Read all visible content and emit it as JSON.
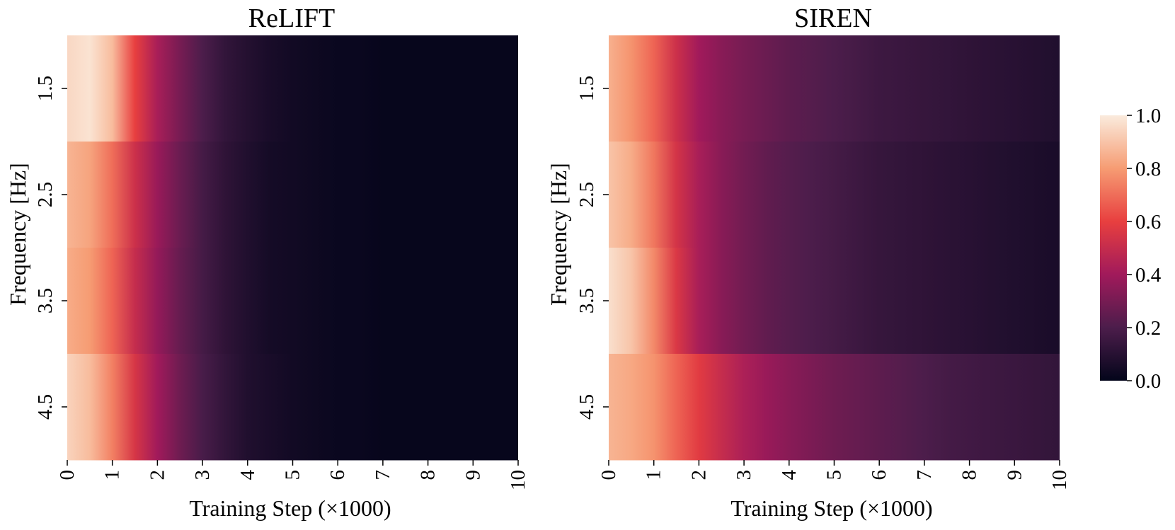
{
  "chart_data": [
    {
      "type": "heatmap",
      "title": "ReLIFT",
      "xlabel": "Training Step (×1000)",
      "ylabel": "Frequency [Hz]",
      "x_ticks": [
        "0",
        "1",
        "2",
        "3",
        "4",
        "5",
        "6",
        "7",
        "8",
        "9",
        "10"
      ],
      "xlim": [
        0,
        10
      ],
      "y_ticks": [
        "1.5",
        "2.5",
        "3.5",
        "4.5"
      ],
      "rows": [
        {
          "label": "1.5",
          "values": [
            0.95,
            0.98,
            0.88,
            0.6,
            0.42,
            0.3,
            0.2,
            0.13,
            0.09,
            0.06,
            0.04,
            0.03,
            0.02,
            0.02,
            0.01,
            0.01,
            0.01,
            0.01,
            0.01,
            0.01,
            0.01
          ]
        },
        {
          "label": "2.5",
          "values": [
            0.86,
            0.82,
            0.7,
            0.52,
            0.38,
            0.27,
            0.18,
            0.12,
            0.08,
            0.05,
            0.04,
            0.03,
            0.02,
            0.02,
            0.01,
            0.01,
            0.01,
            0.01,
            0.01,
            0.01,
            0.01
          ]
        },
        {
          "label": "3.5",
          "values": [
            0.84,
            0.8,
            0.68,
            0.5,
            0.37,
            0.26,
            0.18,
            0.12,
            0.08,
            0.05,
            0.04,
            0.03,
            0.02,
            0.02,
            0.01,
            0.01,
            0.01,
            0.01,
            0.01,
            0.01,
            0.01
          ]
        },
        {
          "label": "4.5",
          "values": [
            0.94,
            0.88,
            0.74,
            0.55,
            0.4,
            0.28,
            0.19,
            0.13,
            0.08,
            0.06,
            0.04,
            0.03,
            0.02,
            0.02,
            0.01,
            0.01,
            0.01,
            0.01,
            0.01,
            0.01,
            0.01
          ]
        }
      ]
    },
    {
      "type": "heatmap",
      "title": "SIREN",
      "xlabel": "Training Step (×1000)",
      "ylabel": "Frequency [Hz]",
      "x_ticks": [
        "0",
        "1",
        "2",
        "3",
        "4",
        "5",
        "6",
        "7",
        "8",
        "9",
        "10"
      ],
      "xlim": [
        0,
        10
      ],
      "y_ticks": [
        "1.5",
        "2.5",
        "3.5",
        "4.5"
      ],
      "rows": [
        {
          "label": "1.5",
          "values": [
            0.85,
            0.78,
            0.68,
            0.52,
            0.4,
            0.34,
            0.3,
            0.27,
            0.24,
            0.22,
            0.2,
            0.18,
            0.16,
            0.15,
            0.14,
            0.13,
            0.12,
            0.11,
            0.1,
            0.09,
            0.08
          ]
        },
        {
          "label": "2.5",
          "values": [
            0.9,
            0.84,
            0.72,
            0.54,
            0.42,
            0.34,
            0.29,
            0.25,
            0.22,
            0.2,
            0.18,
            0.16,
            0.14,
            0.13,
            0.12,
            0.11,
            0.1,
            0.09,
            0.08,
            0.07,
            0.06
          ]
        },
        {
          "label": "3.5",
          "values": [
            0.97,
            0.9,
            0.76,
            0.56,
            0.42,
            0.34,
            0.29,
            0.25,
            0.22,
            0.2,
            0.18,
            0.16,
            0.14,
            0.13,
            0.12,
            0.11,
            0.1,
            0.09,
            0.08,
            0.07,
            0.06
          ]
        },
        {
          "label": "4.5",
          "values": [
            0.86,
            0.83,
            0.78,
            0.68,
            0.58,
            0.5,
            0.43,
            0.38,
            0.34,
            0.31,
            0.28,
            0.26,
            0.24,
            0.22,
            0.2,
            0.18,
            0.17,
            0.16,
            0.15,
            0.14,
            0.13
          ]
        }
      ]
    }
  ],
  "colorbar": {
    "min": 0.0,
    "max": 1.0,
    "ticks": [
      "0.0",
      "0.2",
      "0.4",
      "0.6",
      "0.8",
      "1.0"
    ],
    "colormap": "rocket",
    "stops": [
      "#03051a",
      "#4c1d4b",
      "#a11a5b",
      "#e83f3f",
      "#f69c73",
      "#faebdd"
    ]
  }
}
